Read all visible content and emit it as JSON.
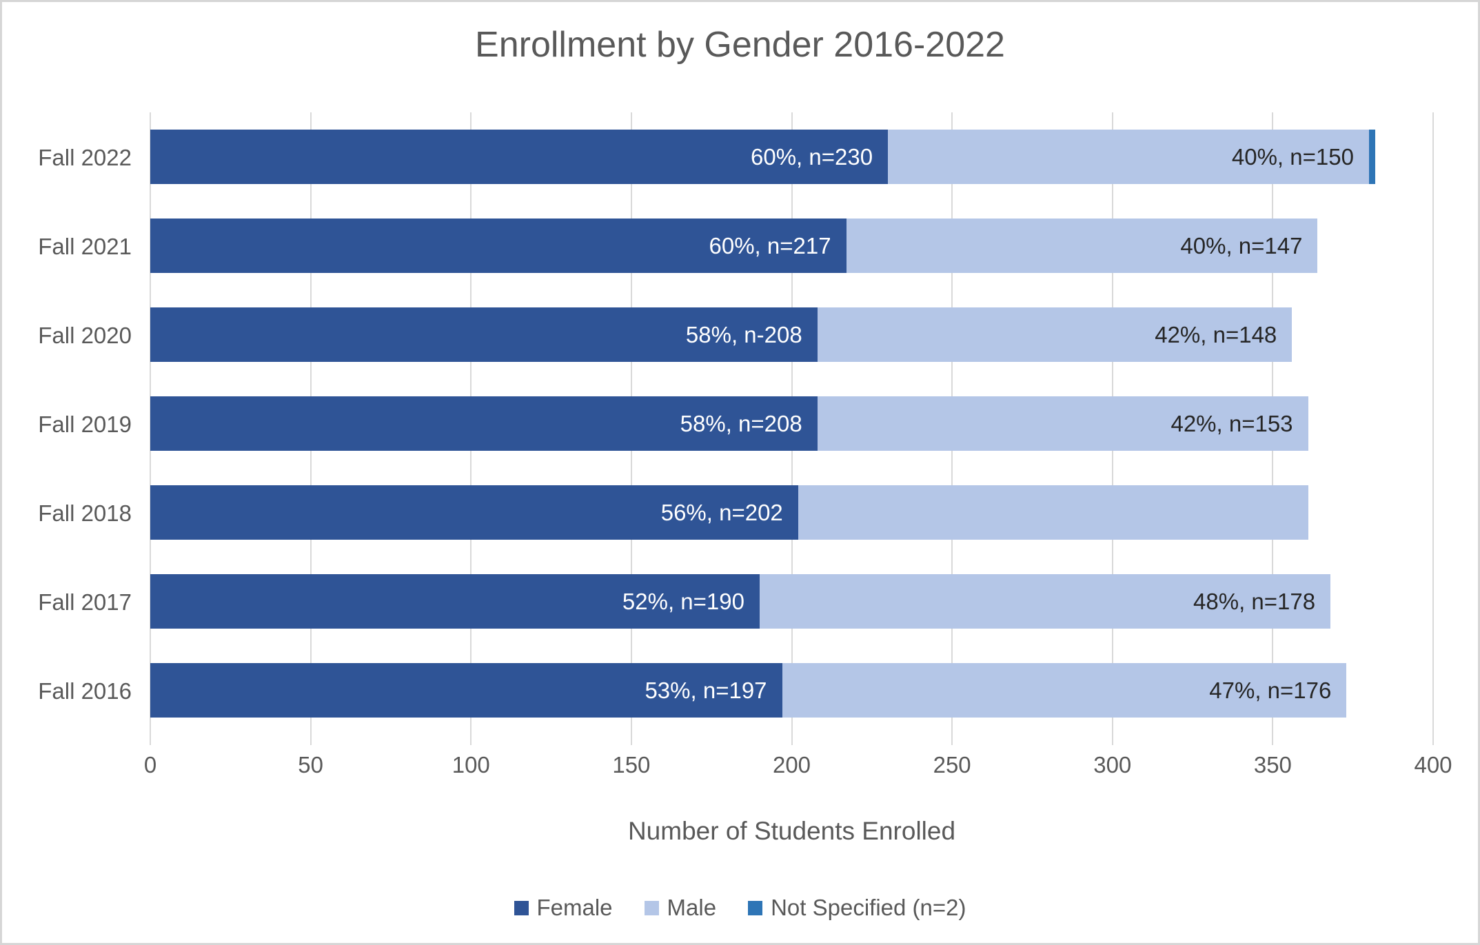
{
  "chart_data": {
    "type": "bar",
    "orientation": "horizontal",
    "stacked": true,
    "title": "Enrollment by Gender 2016-2022",
    "xlabel": "Number of Students Enrolled",
    "xlim": [
      0,
      400
    ],
    "xticks": [
      "0",
      "50",
      "100",
      "150",
      "200",
      "250",
      "300",
      "350",
      "400"
    ],
    "grid": true,
    "legend_position": "bottom",
    "categories": [
      "Fall 2022",
      "Fall 2021",
      "Fall 2020",
      "Fall 2019",
      "Fall 2018",
      "Fall 2017",
      "Fall 2016"
    ],
    "series": [
      {
        "name": "Female",
        "color": "#2F5496",
        "label_color": "#FFFFFF",
        "values": [
          230,
          217,
          208,
          208,
          202,
          190,
          197
        ],
        "labels": [
          "60%, n=230",
          "60%, n=217",
          "58%, n-208",
          "58%, n=208",
          "56%, n=202",
          "52%, n=190",
          "53%, n=197"
        ]
      },
      {
        "name": "Male",
        "color": "#B4C6E7",
        "label_color": "#262626",
        "values": [
          150,
          147,
          148,
          153,
          159,
          178,
          176
        ],
        "labels": [
          "40%, n=150",
          "40%, n=147",
          "42%, n=148",
          "42%, n=153",
          "",
          "48%, n=178",
          "47%, n=176"
        ]
      },
      {
        "name": "Not Specified (n=2)",
        "color": "#2E75B6",
        "label_color": "#262626",
        "values": [
          2,
          0,
          0,
          0,
          0,
          0,
          0
        ],
        "labels": [
          "",
          "",
          "",
          "",
          "",
          "",
          ""
        ]
      }
    ],
    "colors": {
      "grid": "#D9D9D9",
      "axis_text": "#595959",
      "title_text": "#595959"
    }
  }
}
